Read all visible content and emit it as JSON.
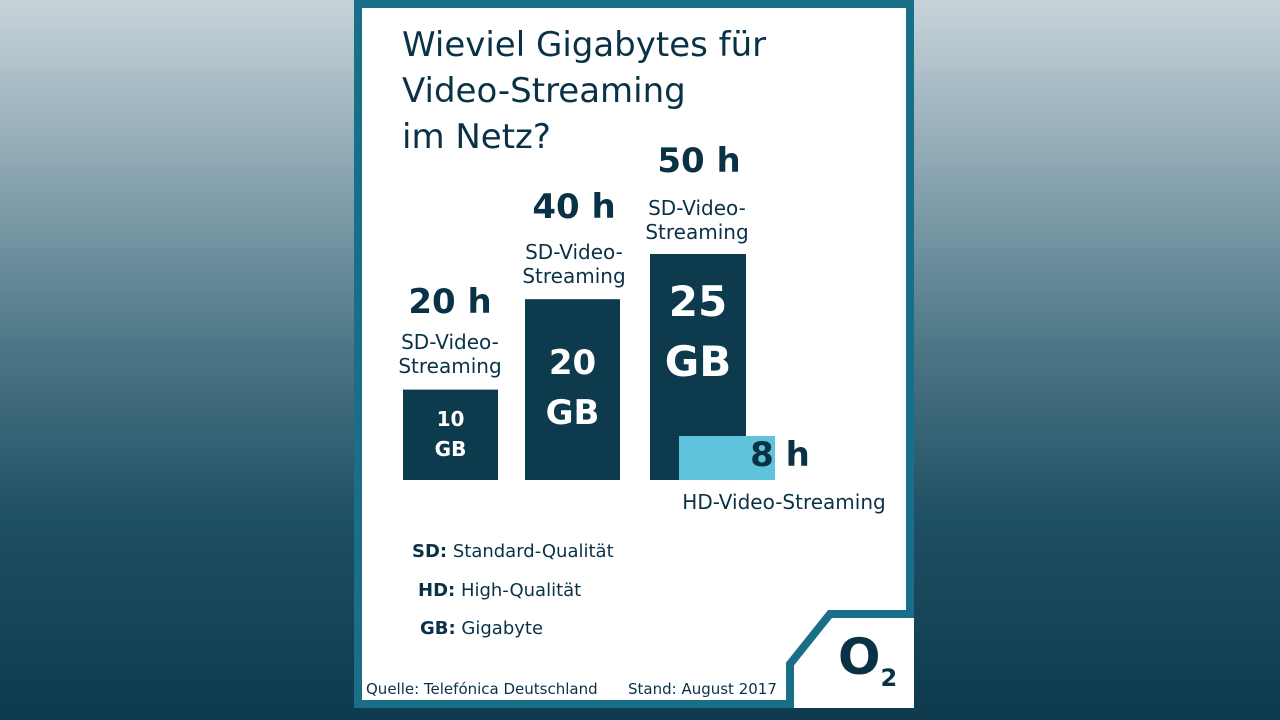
{
  "chart_data": {
    "type": "bar",
    "title": "Wieviel Gigabytes für Video-Streaming im Netz?",
    "categories": [
      "10 GB",
      "20 GB",
      "25 GB"
    ],
    "series": [
      {
        "name": "SD-Video-Streaming",
        "unit": "h",
        "values": [
          20,
          40,
          50
        ],
        "labels": [
          "20 h",
          "40 h",
          "50 h"
        ],
        "color": "#0d3a4d"
      },
      {
        "name": "HD-Video-Streaming",
        "unit": "h",
        "values": [
          null,
          null,
          8
        ],
        "labels": [
          "",
          "",
          "8 h"
        ],
        "color": "#5ec3db"
      }
    ],
    "gb_labels": [
      [
        "10",
        "GB"
      ],
      [
        "20",
        "GB"
      ],
      [
        "25",
        "GB"
      ]
    ],
    "sd_caption": [
      "SD-Video-",
      "Streaming"
    ],
    "hd_caption": "HD-Video-Streaming",
    "ylim": [
      0,
      50
    ]
  },
  "title_lines": [
    "Wieviel Gigabytes für",
    "Video-Streaming",
    "im Netz?"
  ],
  "legend": [
    {
      "abbr": "SD",
      "sep": ":",
      "text": " Standard-Qualität"
    },
    {
      "abbr": "HD",
      "sep": ":",
      "text": " High-Qualität"
    },
    {
      "abbr": "GB",
      "sep": ":",
      "text": " Gigabyte"
    }
  ],
  "footer": {
    "source": "Quelle: Telefónica Deutschland",
    "date": "Stand: August 2017"
  },
  "logo": {
    "letter": "O",
    "sub": "2"
  },
  "colors": {
    "dark": "#0a3247",
    "bar": "#0d3a4d",
    "hd": "#5ec3db",
    "frame": "#1a6f88"
  }
}
